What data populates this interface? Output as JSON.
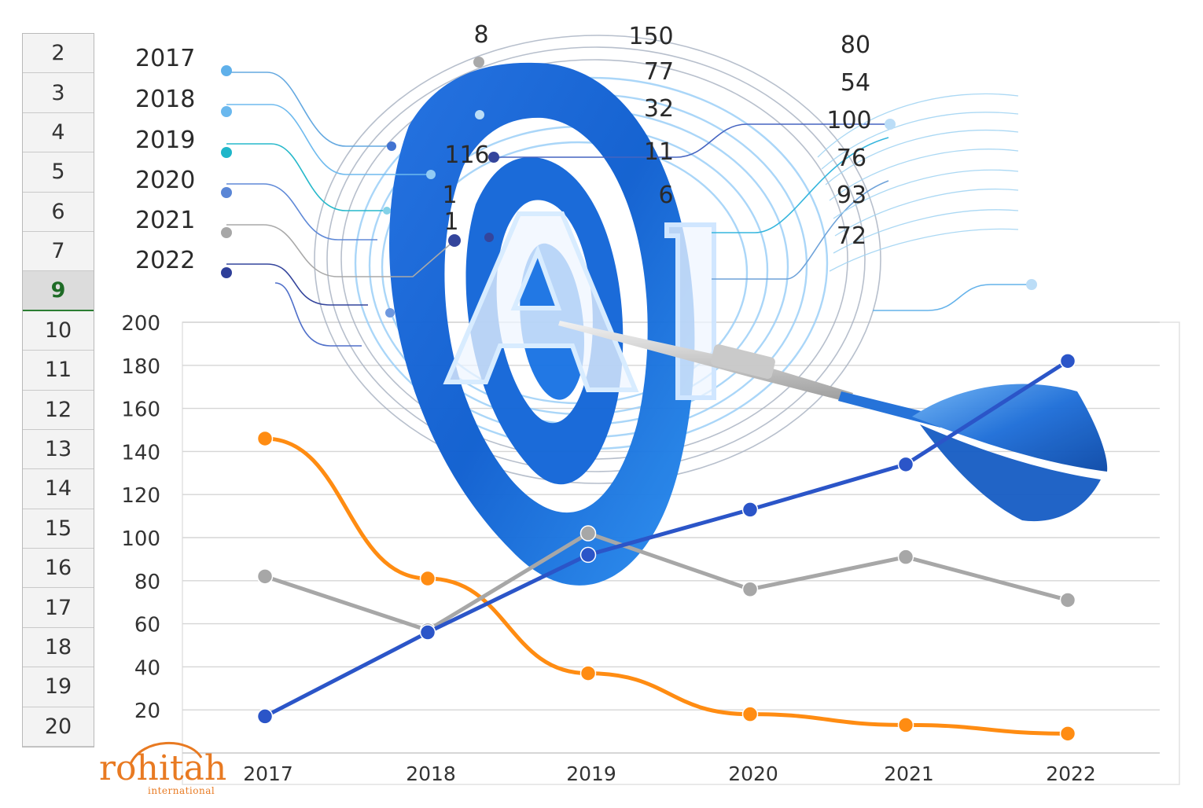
{
  "row_headers": [
    "2",
    "3",
    "4",
    "5",
    "6",
    "7",
    "9",
    "10",
    "11",
    "12",
    "13",
    "14",
    "15",
    "16",
    "17",
    "18",
    "19",
    "20"
  ],
  "active_row": "9",
  "legend_years": [
    "2017",
    "2018",
    "2019",
    "2020",
    "2021",
    "2022"
  ],
  "legend_dot_colors": [
    "#5fb0ea",
    "#6ab8ee",
    "#1fb6c9",
    "#5a86d6",
    "#a7a7a7",
    "#2e3f99"
  ],
  "floating_numbers": [
    "8",
    "150",
    "77",
    "32",
    "11",
    "6",
    "116",
    "1",
    "1",
    "80",
    "54",
    "100",
    "76",
    "93",
    "72"
  ],
  "artwork_letters": "AI",
  "logo": {
    "word": "rohitah",
    "sub": "international",
    "color": "#e87a22"
  },
  "chart_data": {
    "type": "line",
    "categories": [
      "2017",
      "2018",
      "2019",
      "2020",
      "2021",
      "2022"
    ],
    "ylim": [
      0,
      200
    ],
    "yticks": [
      20,
      40,
      60,
      80,
      100,
      120,
      140,
      160,
      180,
      200
    ],
    "grid": true,
    "series": [
      {
        "values": [
          146,
          81,
          37,
          18,
          13,
          9
        ],
        "color": "#ff8c12"
      },
      {
        "values": [
          82,
          57,
          102,
          76,
          91,
          71
        ],
        "color": "#a7a7a7"
      },
      {
        "values": [
          17,
          56,
          92,
          113,
          134,
          182
        ],
        "color": "#2b55c8"
      }
    ]
  }
}
